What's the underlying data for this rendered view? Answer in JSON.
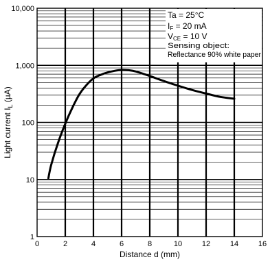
{
  "chart_data": {
    "type": "line",
    "title": "",
    "xlabel": "Distance d (mm)",
    "ylabel": "Light current I",
    "ylabel_sub": "L",
    "ylabel_unit": "(µA)",
    "xlim": [
      0,
      16
    ],
    "ylim": [
      1,
      10000
    ],
    "y_scale": "log",
    "grid": true,
    "x_ticks": [
      0,
      2,
      4,
      6,
      8,
      10,
      12,
      14,
      16
    ],
    "x_tick_labels": [
      "0",
      "2",
      "4",
      "6",
      "8",
      "10",
      "12",
      "14",
      "16"
    ],
    "y_ticks": [
      1,
      10,
      100,
      1000,
      10000
    ],
    "y_tick_labels": [
      "1",
      "10",
      "100",
      "1,000",
      "10,000"
    ],
    "series": [
      {
        "x": [
          0.8,
          1.0,
          1.5,
          2.0,
          2.5,
          3.0,
          3.5,
          4.0,
          4.5,
          5.0,
          5.5,
          6.0,
          6.5,
          7.0,
          8.0,
          9.0,
          10.0,
          11.0,
          12.0,
          13.0,
          14.0
        ],
        "y": [
          10.5,
          18,
          45,
          95,
          180,
          310,
          450,
          590,
          680,
          750,
          800,
          830,
          820,
          780,
          650,
          530,
          440,
          370,
          320,
          280,
          260
        ]
      }
    ],
    "legend_position": "top-right",
    "conditions": {
      "ta": {
        "pre": "Ta = 25°C",
        "sub": "",
        "post": ""
      },
      "if": {
        "pre": "I",
        "sub": "F",
        "post": " = 20 mA"
      },
      "vce": {
        "pre": "V",
        "sub": "CE",
        "post": " = 10 V"
      },
      "object_label": "Sensing object:",
      "object_value": "Reflectance 90% white paper"
    }
  }
}
